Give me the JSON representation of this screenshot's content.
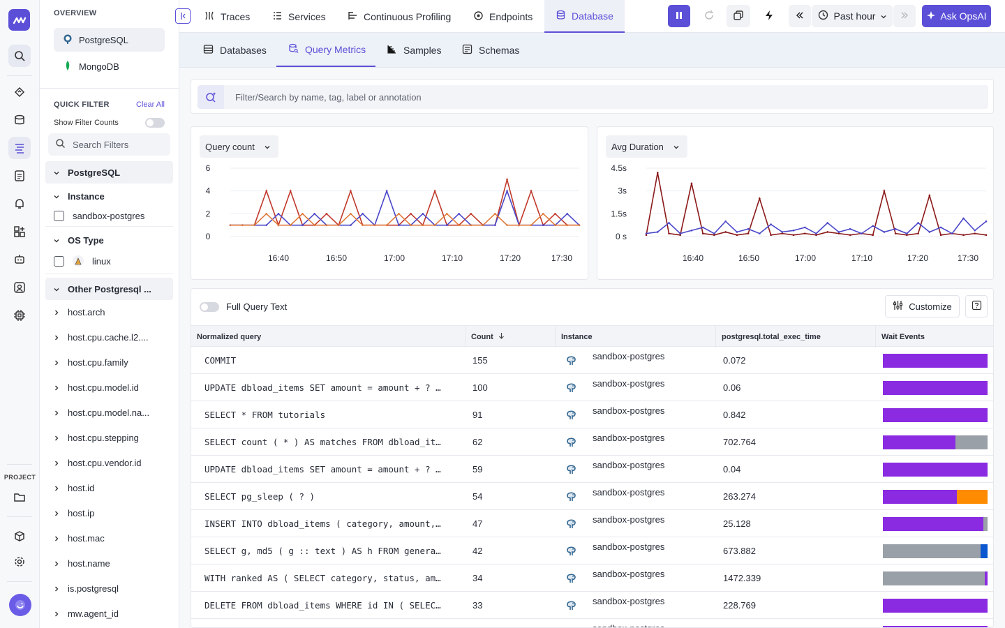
{
  "rail": {
    "project_label": "PROJECT",
    "icons": [
      "search-icon",
      "apm-icon",
      "infra-icon",
      "logs-icon",
      "dashboard-icon",
      "alerts-icon",
      "integrations-icon",
      "agent-icon",
      "rum-icon",
      "chip-icon"
    ]
  },
  "side": {
    "overview_title": "OVERVIEW",
    "databases": [
      {
        "label": "PostgreSQL",
        "active": true
      },
      {
        "label": "MongoDB",
        "active": false
      }
    ],
    "quick_filter_title": "QUICK FILTER",
    "clear_all": "Clear All",
    "show_filter_counts": "Show Filter Counts",
    "search_placeholder": "Search Filters",
    "group_postgres": "PostgreSQL",
    "group_instance": "Instance",
    "instance_value": "sandbox-postgres",
    "group_os": "OS Type",
    "os_value": "linux",
    "group_other": "Other Postgresql ...",
    "attrs": [
      "host.arch",
      "host.cpu.cache.l2....",
      "host.cpu.family",
      "host.cpu.model.id",
      "host.cpu.model.na...",
      "host.cpu.stepping",
      "host.cpu.vendor.id",
      "host.id",
      "host.ip",
      "host.mac",
      "host.name",
      "is.postgresql",
      "mw.agent_id"
    ]
  },
  "topnav": {
    "tabs": [
      "Traces",
      "Services",
      "Continuous Profiling",
      "Endpoints",
      "Database"
    ],
    "active_tab": "Database",
    "time_range": "Past hour",
    "ask_label": "Ask OpsAI"
  },
  "subnav": {
    "tabs": [
      "Databases",
      "Query Metrics",
      "Samples",
      "Schemas"
    ],
    "active_tab": "Query Metrics"
  },
  "filter": {
    "placeholder": "Filter/Search by name, tag, label or annotation"
  },
  "chart_left": {
    "dropdown": "Query count",
    "y_ticks": [
      "6",
      "4",
      "2",
      "0"
    ],
    "x_ticks": [
      "16:40",
      "16:50",
      "17:00",
      "17:10",
      "17:20",
      "17:30"
    ]
  },
  "chart_right": {
    "dropdown": "Avg Duration",
    "y_ticks": [
      "4.5s",
      "3s",
      "1.5s",
      "0 s"
    ],
    "x_ticks": [
      "16:40",
      "16:50",
      "17:00",
      "17:10",
      "17:20",
      "17:30"
    ]
  },
  "chart_data": [
    {
      "type": "line",
      "title": "",
      "xlabel": "",
      "ylabel": "",
      "ylim": [
        0,
        6
      ],
      "x": [
        "16:34",
        "16:36",
        "16:38",
        "16:40",
        "16:42",
        "16:44",
        "16:46",
        "16:48",
        "16:50",
        "16:52",
        "16:54",
        "16:56",
        "16:58",
        "17:00",
        "17:02",
        "17:04",
        "17:06",
        "17:08",
        "17:10",
        "17:12",
        "17:14",
        "17:16",
        "17:18",
        "17:20",
        "17:22",
        "17:24",
        "17:26",
        "17:28",
        "17:30",
        "17:32"
      ],
      "series": [
        {
          "color": "#c0392b",
          "values": [
            1,
            1,
            1,
            4,
            1,
            4,
            1,
            1,
            2,
            1,
            4,
            1,
            1,
            1,
            1,
            2,
            1,
            4,
            1,
            1,
            2,
            1,
            1,
            5,
            1,
            4,
            1,
            2,
            1,
            1
          ]
        },
        {
          "color": "#4a47c9",
          "values": [
            1,
            1,
            1,
            1,
            2,
            1,
            1,
            2,
            1,
            1,
            1,
            2,
            1,
            4,
            1,
            1,
            2,
            1,
            1,
            2,
            1,
            1,
            1,
            4,
            1,
            1,
            1,
            1,
            2,
            1
          ]
        },
        {
          "color": "#e07a3b",
          "values": [
            1,
            1,
            1,
            2,
            1,
            1,
            2,
            1,
            1,
            1,
            2,
            1,
            1,
            1,
            2,
            1,
            1,
            1,
            2,
            1,
            1,
            1,
            2,
            1,
            1,
            1,
            2,
            1,
            1,
            1
          ]
        }
      ]
    },
    {
      "type": "line",
      "title": "",
      "xlabel": "",
      "ylabel": "",
      "ylim": [
        0,
        4.5
      ],
      "x": [
        "16:32",
        "16:34",
        "16:36",
        "16:38",
        "16:40",
        "16:42",
        "16:44",
        "16:46",
        "16:48",
        "16:50",
        "16:52",
        "16:54",
        "16:56",
        "16:58",
        "17:00",
        "17:02",
        "17:04",
        "17:06",
        "17:08",
        "17:10",
        "17:12",
        "17:14",
        "17:16",
        "17:18",
        "17:20",
        "17:22",
        "17:24",
        "17:26",
        "17:28",
        "17:30",
        "17:32"
      ],
      "series": [
        {
          "color": "#8b1a1a",
          "values": [
            0.1,
            4.2,
            0.2,
            0.1,
            3.5,
            0.2,
            0.1,
            0.3,
            0.1,
            0.2,
            2.5,
            0.1,
            0.2,
            0.1,
            0.2,
            0.1,
            0.3,
            0.2,
            0.1,
            0.2,
            0.1,
            3.0,
            0.2,
            0.1,
            0.2,
            2.7,
            0.1,
            0.2,
            0.1,
            0.2,
            0.1
          ]
        },
        {
          "color": "#4a47c9",
          "values": [
            0.2,
            0.3,
            0.9,
            0.2,
            0.4,
            0.6,
            0.2,
            1.0,
            0.3,
            0.5,
            0.2,
            0.8,
            0.3,
            0.4,
            0.6,
            0.2,
            0.9,
            0.3,
            0.5,
            0.2,
            0.7,
            0.3,
            0.5,
            0.2,
            0.9,
            0.3,
            0.6,
            0.2,
            1.2,
            0.4,
            1.0
          ]
        }
      ]
    }
  ],
  "table": {
    "full_query_text": "Full Query Text",
    "customize": "Customize",
    "columns": [
      "Normalized query",
      "Count",
      "Instance",
      "postgresql.total_exec_time",
      "Wait Events"
    ],
    "rows": [
      {
        "query": "COMMIT",
        "count": "155",
        "instance": "sandbox-postgres",
        "exec": "0.072",
        "wait": [
          {
            "c": "#8a2be2",
            "v": 1
          }
        ]
      },
      {
        "query": "UPDATE dbload_items SET amount = amount + ? …",
        "count": "100",
        "instance": "sandbox-postgres",
        "exec": "0.06",
        "wait": [
          {
            "c": "#8a2be2",
            "v": 1
          }
        ]
      },
      {
        "query": "SELECT * FROM tutorials",
        "count": "91",
        "instance": "sandbox-postgres",
        "exec": "0.842",
        "wait": [
          {
            "c": "#8a2be2",
            "v": 1
          }
        ]
      },
      {
        "query": "SELECT count ( * ) AS matches FROM dbload_it…",
        "count": "62",
        "instance": "sandbox-postgres",
        "exec": "702.764",
        "wait": [
          {
            "c": "#8a2be2",
            "v": 0.69
          },
          {
            "c": "#9aa0a8",
            "v": 0.31
          }
        ]
      },
      {
        "query": "UPDATE dbload_items SET amount = amount + ? …",
        "count": "59",
        "instance": "sandbox-postgres",
        "exec": "0.04",
        "wait": [
          {
            "c": "#8a2be2",
            "v": 1
          }
        ]
      },
      {
        "query": "SELECT pg_sleep ( ? )",
        "count": "54",
        "instance": "sandbox-postgres",
        "exec": "263.274",
        "wait": [
          {
            "c": "#8a2be2",
            "v": 0.71
          },
          {
            "c": "#ff8c00",
            "v": 0.29
          }
        ]
      },
      {
        "query": "INSERT INTO dbload_items ( category, amount,…",
        "count": "47",
        "instance": "sandbox-postgres",
        "exec": "25.128",
        "wait": [
          {
            "c": "#8a2be2",
            "v": 0.96
          },
          {
            "c": "#9aa0a8",
            "v": 0.04
          }
        ]
      },
      {
        "query": "SELECT g, md5 ( g :: text ) AS h FROM genera…",
        "count": "42",
        "instance": "sandbox-postgres",
        "exec": "673.882",
        "wait": [
          {
            "c": "#9aa0a8",
            "v": 0.93
          },
          {
            "c": "#0b57d0",
            "v": 0.07
          }
        ]
      },
      {
        "query": "WITH ranked AS ( SELECT category, status, am…",
        "count": "34",
        "instance": "sandbox-postgres",
        "exec": "1472.339",
        "wait": [
          {
            "c": "#9aa0a8",
            "v": 0.97
          },
          {
            "c": "#8a2be2",
            "v": 0.03
          }
        ]
      },
      {
        "query": "DELETE FROM dbload_items WHERE id IN ( SELEC…",
        "count": "33",
        "instance": "sandbox-postgres",
        "exec": "228.769",
        "wait": [
          {
            "c": "#8a2be2",
            "v": 1
          }
        ]
      },
      {
        "query": "",
        "count": "",
        "instance": "sandbox-postgres",
        "exec": "",
        "wait": [
          {
            "c": "#8a2be2",
            "v": 1
          }
        ]
      }
    ]
  }
}
